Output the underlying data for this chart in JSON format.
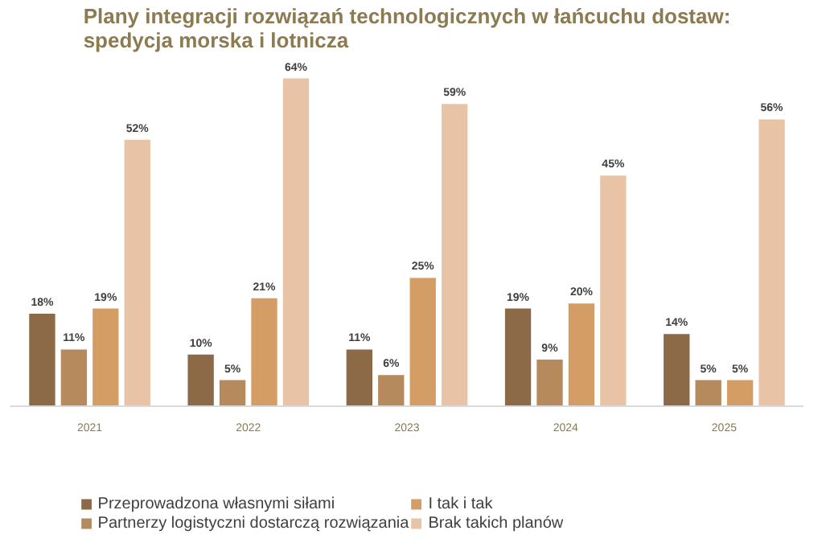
{
  "chart_data": {
    "type": "bar",
    "title": "Plany integracji rozwiązań technologicznych w łańcuchu dostaw: spedycja morska i lotnicza",
    "categories": [
      "2021",
      "2022",
      "2023",
      "2024",
      "2025"
    ],
    "legend": "bottom",
    "series": [
      {
        "name": "Przeprowadzona własnymi siłami",
        "color": "#8c6a48",
        "values": [
          18,
          10,
          11,
          19,
          14
        ],
        "value_labels": [
          "18%",
          "10%",
          "11%",
          "19%",
          "14%"
        ]
      },
      {
        "name": "Partnerzy logistyczni dostarczą rozwiązania",
        "color": "#b68a5c",
        "values": [
          11,
          5,
          6,
          9,
          5
        ],
        "value_labels": [
          "11%",
          "5%",
          "6%",
          "9%",
          "5%"
        ]
      },
      {
        "name": "I tak i tak",
        "color": "#d49d66",
        "values": [
          19,
          21,
          25,
          20,
          5
        ],
        "value_labels": [
          "19%",
          "21%",
          "25%",
          "20%",
          "5%"
        ]
      },
      {
        "name": "Brak takich planów",
        "color": "#e8c3a6",
        "values": [
          52,
          64,
          59,
          45,
          56
        ],
        "value_labels": [
          "52%",
          "64%",
          "59%",
          "45%",
          "56%"
        ]
      }
    ]
  }
}
